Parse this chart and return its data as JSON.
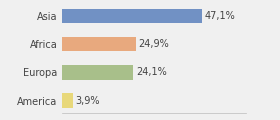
{
  "categories": [
    "Asia",
    "Africa",
    "Europa",
    "America"
  ],
  "values": [
    47.1,
    24.9,
    24.1,
    3.9
  ],
  "labels": [
    "47,1%",
    "24,9%",
    "24,1%",
    "3,9%"
  ],
  "bar_colors": [
    "#7191c4",
    "#e8a97e",
    "#a8bf8a",
    "#e8d87a"
  ],
  "background_color": "#f0f0f0",
  "figsize": [
    2.8,
    1.2
  ],
  "dpi": 100,
  "xlim": [
    0,
    62
  ],
  "bar_height": 0.52,
  "label_fontsize": 7.0,
  "ytick_fontsize": 7.0
}
